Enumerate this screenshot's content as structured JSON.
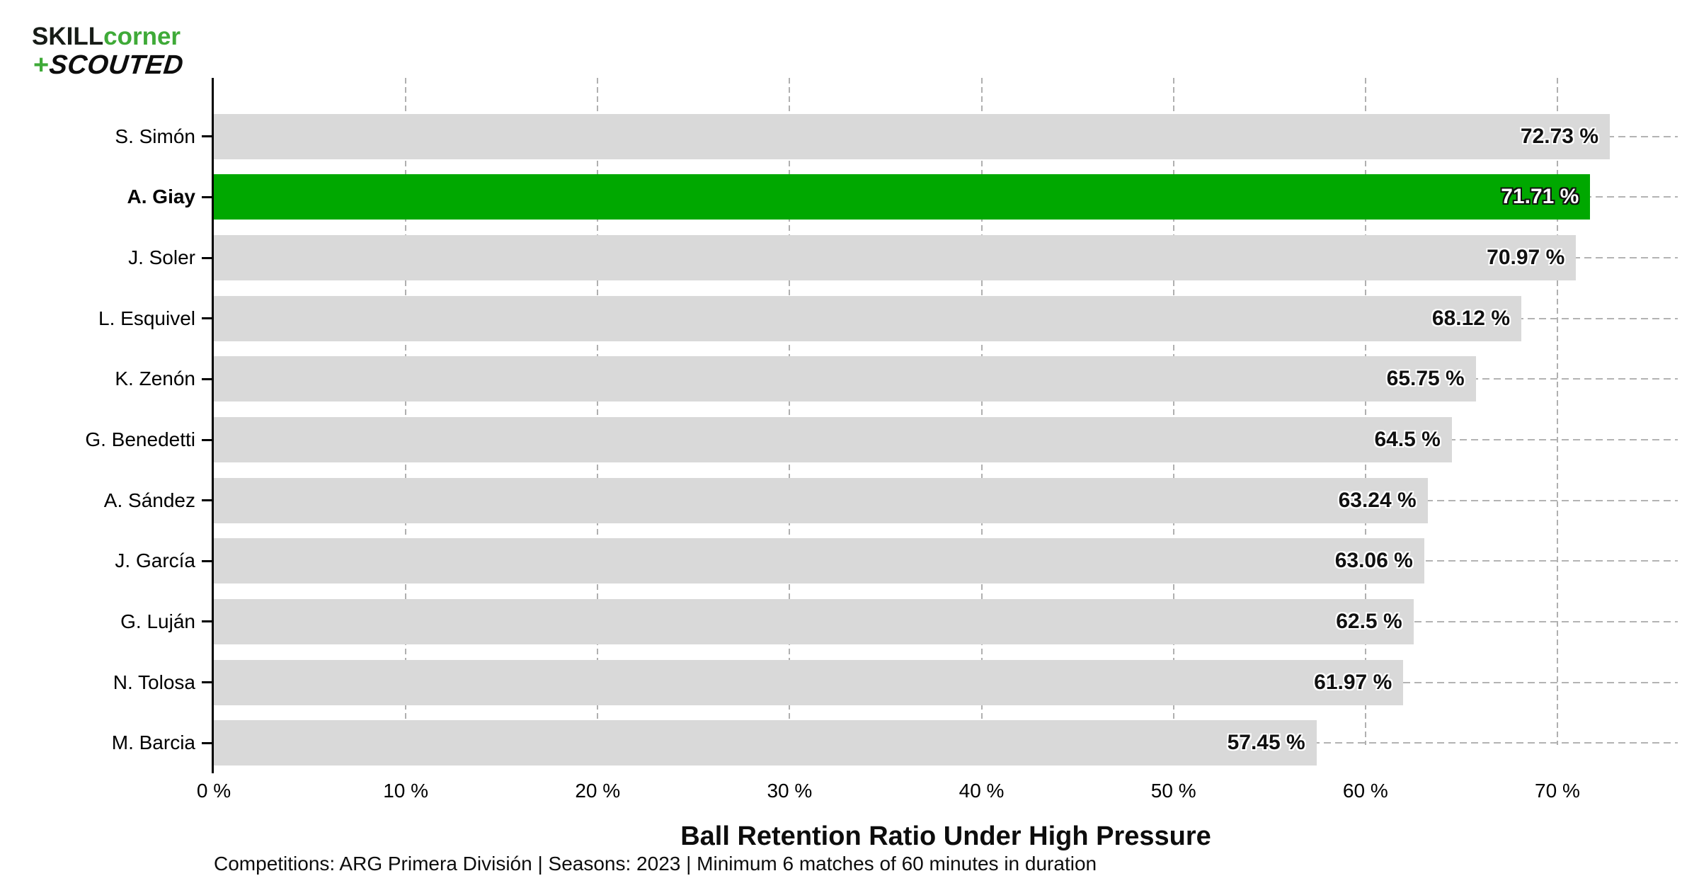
{
  "logo": {
    "part_skill": "SKILL",
    "part_corner": "corner",
    "plus": "+",
    "part_scouted": "SCOUTED",
    "green": "#3faa38"
  },
  "chart_data": {
    "type": "bar",
    "orientation": "horizontal",
    "title": "Ball Retention Ratio Under High Pressure",
    "footnote": "Competitions: ARG Primera División | Seasons: 2023 | Minimum 6 matches of 60 minutes in duration",
    "categories": [
      "S. Simón",
      "A. Giay",
      "J. Soler",
      "L. Esquivel",
      "K. Zenón",
      "G. Benedetti",
      "A. Sández",
      "J. García",
      "G. Luján",
      "N. Tolosa",
      "M. Barcia"
    ],
    "values": [
      72.73,
      71.71,
      70.97,
      68.12,
      65.75,
      64.5,
      63.24,
      63.06,
      62.5,
      61.97,
      57.45
    ],
    "value_labels": [
      "72.73 %",
      "71.71 %",
      "70.97 %",
      "68.12 %",
      "65.75 %",
      "64.5 %",
      "63.24 %",
      "63.06 %",
      "62.5 %",
      "61.97 %",
      "57.45 %"
    ],
    "highlight_index": 1,
    "highlight_category": "A. Giay",
    "x_ticks": [
      "0 %",
      "10 %",
      "20 %",
      "30 %",
      "40 %",
      "50 %",
      "60 %",
      "70 %"
    ],
    "x_tick_values": [
      0,
      10,
      20,
      30,
      40,
      50,
      60,
      70
    ],
    "xlim": [
      0,
      76.3
    ],
    "grid": "dashed",
    "legend": "none",
    "colors": {
      "bar": "#d9d9d9",
      "highlight_bar": "#00a800",
      "axis": "#000000",
      "gridline": "#b0b0b0",
      "value_text_on_gray": "#111111",
      "value_text_on_green": "#ffffff"
    }
  }
}
